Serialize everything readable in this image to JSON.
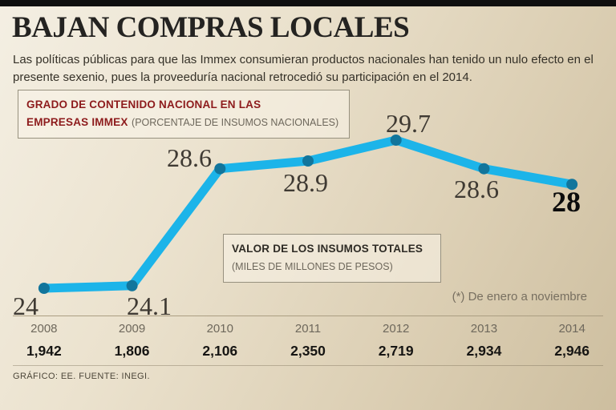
{
  "header": {
    "title": "BAJAN COMPRAS LOCALES",
    "subtitle": "Las políticas públicas para que las Immex consumieran productos nacionales han tenido un nulo efecto en el presente sexenio, pues la proveeduría nacional retrocedió su participación en el 2014."
  },
  "kicker1": {
    "line1_bold": "GRADO DE CONTENIDO NACIONAL EN LAS",
    "line2_bold": "EMPRESAS IMMEX",
    "line2_note": "(PORCENTAJE DE INSUMOS NACIONALES)"
  },
  "kicker2": {
    "line1_bold": "VALOR DE LOS INSUMOS TOTALES",
    "line2_note": "(MILES DE MILLONES DE PESOS)"
  },
  "note": "(*) De enero a noviembre",
  "footer": "GRÁFICO: EE. FUENTE: INEGI.",
  "chart_data": {
    "type": "line",
    "title": "GRADO DE CONTENIDO NACIONAL EN LAS EMPRESAS IMMEX",
    "subtitle": "(PORCENTAJE DE INSUMOS NACIONALES)",
    "categories": [
      "2008",
      "2009",
      "2010",
      "2011",
      "2012",
      "2013",
      "2014"
    ],
    "years": [
      "2008",
      "2009",
      "2010",
      "2011",
      "2012",
      "2013",
      "2014"
    ],
    "series": [
      {
        "name": "Grado de contenido nacional en las empresas Immex (% de insumos nacionales)",
        "values": [
          24,
          24.1,
          28.6,
          28.9,
          29.7,
          28.6,
          28
        ]
      },
      {
        "name": "Valor de los insumos totales (miles de millones de pesos)",
        "values": [
          1942,
          1806,
          2106,
          2350,
          2719,
          2934,
          2946
        ]
      }
    ],
    "point_labels": [
      "24",
      "24.1",
      "28.6",
      "28.9",
      "29.7",
      "28.6",
      "28"
    ],
    "totals_labels": [
      "1,942",
      "1,806",
      "2,106",
      "2,350",
      "2,719",
      "2,934",
      "2,946"
    ],
    "line_color": "#1cb4e9",
    "dot_color": "#11759c",
    "ylim": [
      23,
      31
    ],
    "grid": false,
    "legend_position": "none",
    "footnote": "(*) De enero a noviembre"
  }
}
